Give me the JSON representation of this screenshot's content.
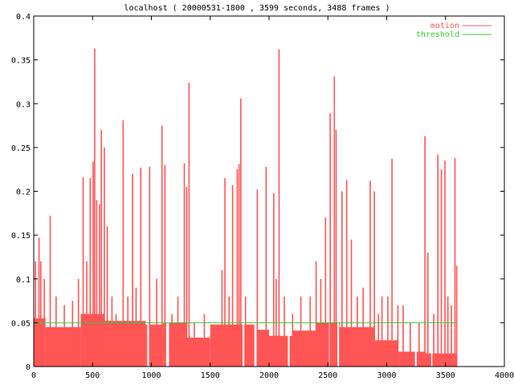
{
  "chart_data": {
    "type": "area",
    "title": "localhost ( 20000531-1800 , 3599 seconds, 3488 frames )",
    "xlabel": "",
    "ylabel": "",
    "xlim": [
      0,
      4000
    ],
    "ylim": [
      0,
      0.4
    ],
    "x_ticks": [
      0,
      500,
      1000,
      1500,
      2000,
      2500,
      3000,
      3500,
      4000
    ],
    "y_ticks": [
      0,
      0.05,
      0.1,
      0.15,
      0.2,
      0.25,
      0.3,
      0.35,
      0.4
    ],
    "x_tick_labels": [
      "0",
      "500",
      "1000",
      "1500",
      "2000",
      "2500",
      "3000",
      "3500",
      "4000"
    ],
    "y_tick_labels": [
      "0",
      "0.05",
      "0.1",
      "0.15",
      "0.2",
      "0.25",
      "0.3",
      "0.35",
      "0.4"
    ],
    "grid": false,
    "legend_position": "top-right",
    "colors": {
      "motion": "#ff5555",
      "threshold": "#33cc33",
      "axis": "#000000"
    },
    "series": [
      {
        "name": "motion",
        "type": "area",
        "x_end": 3599,
        "baseline_segments": [
          {
            "x0": 0,
            "x1": 100,
            "y": 0.055
          },
          {
            "x0": 100,
            "x1": 400,
            "y": 0.045
          },
          {
            "x0": 400,
            "x1": 600,
            "y": 0.06
          },
          {
            "x0": 600,
            "x1": 950,
            "y": 0.052
          },
          {
            "x0": 950,
            "x1": 1100,
            "y": 0.048
          },
          {
            "x0": 1100,
            "x1": 1300,
            "y": 0.05
          },
          {
            "x0": 1300,
            "x1": 1500,
            "y": 0.033
          },
          {
            "x0": 1500,
            "x1": 1900,
            "y": 0.048
          },
          {
            "x0": 1900,
            "x1": 2000,
            "y": 0.042
          },
          {
            "x0": 2000,
            "x1": 2200,
            "y": 0.035
          },
          {
            "x0": 2200,
            "x1": 2400,
            "y": 0.041
          },
          {
            "x0": 2400,
            "x1": 2600,
            "y": 0.05
          },
          {
            "x0": 2600,
            "x1": 2900,
            "y": 0.045
          },
          {
            "x0": 2900,
            "x1": 3100,
            "y": 0.03
          },
          {
            "x0": 3100,
            "x1": 3330,
            "y": 0.017
          },
          {
            "x0": 3330,
            "x1": 3599,
            "y": 0.015
          }
        ],
        "peaks": [
          {
            "x": 15,
            "y": 0.12
          },
          {
            "x": 45,
            "y": 0.147
          },
          {
            "x": 60,
            "y": 0.12
          },
          {
            "x": 90,
            "y": 0.1
          },
          {
            "x": 140,
            "y": 0.172
          },
          {
            "x": 190,
            "y": 0.08
          },
          {
            "x": 260,
            "y": 0.07
          },
          {
            "x": 330,
            "y": 0.075
          },
          {
            "x": 380,
            "y": 0.1
          },
          {
            "x": 420,
            "y": 0.216
          },
          {
            "x": 450,
            "y": 0.12
          },
          {
            "x": 480,
            "y": 0.215
          },
          {
            "x": 505,
            "y": 0.234
          },
          {
            "x": 518,
            "y": 0.363
          },
          {
            "x": 535,
            "y": 0.19
          },
          {
            "x": 560,
            "y": 0.185
          },
          {
            "x": 575,
            "y": 0.27
          },
          {
            "x": 600,
            "y": 0.25
          },
          {
            "x": 625,
            "y": 0.16
          },
          {
            "x": 665,
            "y": 0.08
          },
          {
            "x": 700,
            "y": 0.06
          },
          {
            "x": 760,
            "y": 0.281
          },
          {
            "x": 800,
            "y": 0.08
          },
          {
            "x": 840,
            "y": 0.22
          },
          {
            "x": 870,
            "y": 0.09
          },
          {
            "x": 910,
            "y": 0.227
          },
          {
            "x": 985,
            "y": 0.228
          },
          {
            "x": 1045,
            "y": 0.1
          },
          {
            "x": 1090,
            "y": 0.275
          },
          {
            "x": 1115,
            "y": 0.23
          },
          {
            "x": 1175,
            "y": 0.06
          },
          {
            "x": 1225,
            "y": 0.08
          },
          {
            "x": 1280,
            "y": 0.232
          },
          {
            "x": 1300,
            "y": 0.205
          },
          {
            "x": 1320,
            "y": 0.324
          },
          {
            "x": 1365,
            "y": 0.05
          },
          {
            "x": 1450,
            "y": 0.06
          },
          {
            "x": 1600,
            "y": 0.11
          },
          {
            "x": 1625,
            "y": 0.215
          },
          {
            "x": 1660,
            "y": 0.08
          },
          {
            "x": 1690,
            "y": 0.207
          },
          {
            "x": 1730,
            "y": 0.225
          },
          {
            "x": 1745,
            "y": 0.231
          },
          {
            "x": 1760,
            "y": 0.306
          },
          {
            "x": 1800,
            "y": 0.08
          },
          {
            "x": 1900,
            "y": 0.202
          },
          {
            "x": 1975,
            "y": 0.228
          },
          {
            "x": 2040,
            "y": 0.198
          },
          {
            "x": 2060,
            "y": 0.1
          },
          {
            "x": 2085,
            "y": 0.362
          },
          {
            "x": 2130,
            "y": 0.08
          },
          {
            "x": 2200,
            "y": 0.06
          },
          {
            "x": 2270,
            "y": 0.08
          },
          {
            "x": 2350,
            "y": 0.08
          },
          {
            "x": 2400,
            "y": 0.12
          },
          {
            "x": 2440,
            "y": 0.1
          },
          {
            "x": 2480,
            "y": 0.17
          },
          {
            "x": 2520,
            "y": 0.289
          },
          {
            "x": 2555,
            "y": 0.331
          },
          {
            "x": 2570,
            "y": 0.27
          },
          {
            "x": 2620,
            "y": 0.2
          },
          {
            "x": 2660,
            "y": 0.213
          },
          {
            "x": 2700,
            "y": 0.145
          },
          {
            "x": 2750,
            "y": 0.08
          },
          {
            "x": 2800,
            "y": 0.09
          },
          {
            "x": 2860,
            "y": 0.212
          },
          {
            "x": 2895,
            "y": 0.2
          },
          {
            "x": 2930,
            "y": 0.06
          },
          {
            "x": 2960,
            "y": 0.08
          },
          {
            "x": 3010,
            "y": 0.08
          },
          {
            "x": 3045,
            "y": 0.237
          },
          {
            "x": 3095,
            "y": 0.07
          },
          {
            "x": 3140,
            "y": 0.07
          },
          {
            "x": 3200,
            "y": 0.05
          },
          {
            "x": 3275,
            "y": 0.05
          },
          {
            "x": 3325,
            "y": 0.263
          },
          {
            "x": 3350,
            "y": 0.13
          },
          {
            "x": 3400,
            "y": 0.06
          },
          {
            "x": 3435,
            "y": 0.242
          },
          {
            "x": 3465,
            "y": 0.225
          },
          {
            "x": 3495,
            "y": 0.235
          },
          {
            "x": 3520,
            "y": 0.08
          },
          {
            "x": 3550,
            "y": 0.07
          },
          {
            "x": 3580,
            "y": 0.238
          },
          {
            "x": 3595,
            "y": 0.115
          }
        ],
        "dropouts": [
          {
            "x0": 965,
            "x1": 985
          },
          {
            "x0": 1125,
            "x1": 1150
          },
          {
            "x0": 1775,
            "x1": 1790
          },
          {
            "x0": 1875,
            "x1": 1895
          },
          {
            "x0": 2160,
            "x1": 2175
          },
          {
            "x0": 2510,
            "x1": 2518
          },
          {
            "x0": 2580,
            "x1": 2595
          },
          {
            "x0": 3240,
            "x1": 3255
          },
          {
            "x0": 3378,
            "x1": 3388
          }
        ]
      },
      {
        "name": "threshold",
        "type": "line",
        "y": 0.05,
        "x": [
          0,
          3599
        ]
      }
    ]
  }
}
